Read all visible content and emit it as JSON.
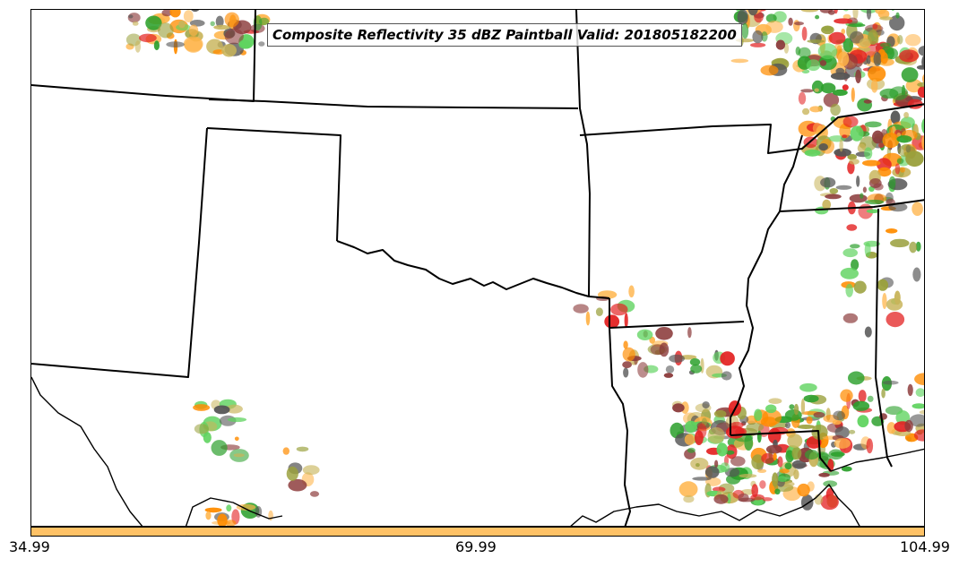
{
  "title": "Composite Reflectivity 35 dBZ Paintball Valid: 201805182200",
  "colorbar": {
    "color": "#ffc266",
    "ticks": [
      "34.99",
      "69.99",
      "104.99"
    ]
  },
  "colors": {
    "state_lines": "#000000",
    "paintball": [
      "#2ca02c",
      "#ff8c00",
      "#e32222",
      "#8b3a3a",
      "#9aa03c",
      "#555555",
      "#ffb347",
      "#5fd35f",
      "#c8b45a"
    ]
  }
}
